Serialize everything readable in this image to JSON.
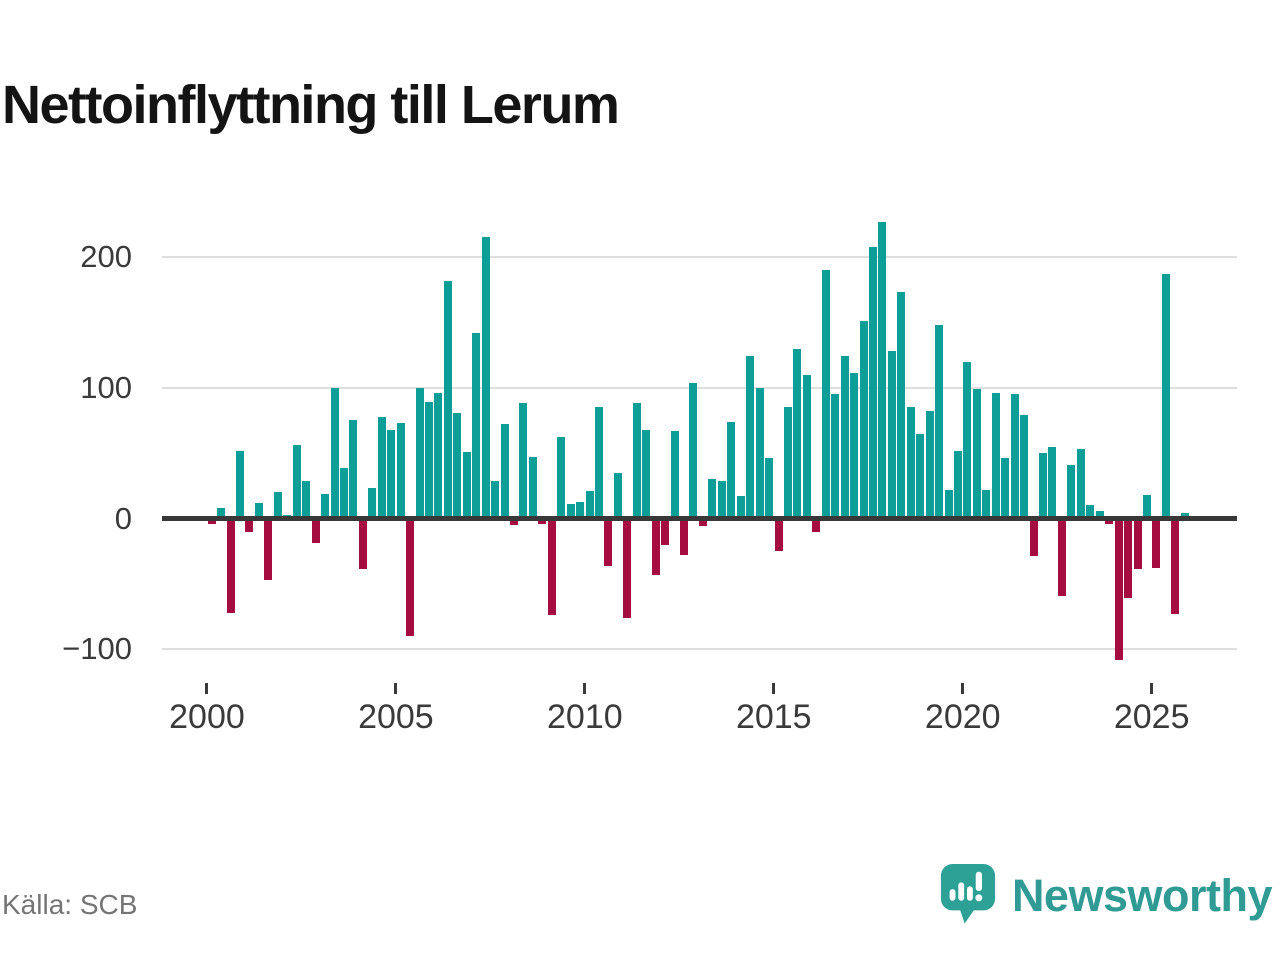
{
  "title": "Nettoinflyttning till Lerum",
  "source": "Källa: SCB",
  "logo": {
    "text": "Newsworthy",
    "icon": "newsworthy-speech-bubble-barchart-icon"
  },
  "colors": {
    "positive": "#0d9f97",
    "negative": "#a50d41",
    "grid": "#dedede",
    "zero_axis": "#383838",
    "tick_label": "#3a3a3a",
    "title": "#141414",
    "source": "#757575",
    "logo": "#2ea197"
  },
  "chart_data": {
    "type": "bar",
    "title": "Nettoinflyttning till Lerum",
    "xlabel": "",
    "ylabel": "",
    "x_unit": "quarter",
    "start_period": "2000Q1",
    "end_period": "2025Q4",
    "ylim": [
      -130,
      245
    ],
    "grid": true,
    "legend": "none",
    "yticks": [
      {
        "value": 200,
        "label": "200"
      },
      {
        "value": 100,
        "label": "100"
      },
      {
        "value": 0,
        "label": "0"
      },
      {
        "value": -100,
        "label": "−100"
      }
    ],
    "xticks": [
      {
        "value": 2000,
        "label": "2000"
      },
      {
        "value": 2005,
        "label": "2005"
      },
      {
        "value": 2010,
        "label": "2010"
      },
      {
        "value": 2015,
        "label": "2015"
      },
      {
        "value": 2020,
        "label": "2020"
      },
      {
        "value": 2025,
        "label": "2025"
      }
    ],
    "values": [
      -4,
      8,
      -72,
      52,
      -10,
      12,
      -47,
      20,
      3,
      56,
      29,
      -19,
      19,
      100,
      39,
      75,
      -39,
      23,
      78,
      68,
      73,
      -90,
      100,
      89,
      96,
      182,
      81,
      51,
      142,
      215,
      29,
      72,
      -5,
      88,
      47,
      -4,
      -74,
      62,
      11,
      13,
      21,
      85,
      -36,
      35,
      -76,
      88,
      68,
      -43,
      -20,
      67,
      -28,
      104,
      -6,
      30,
      29,
      74,
      17,
      124,
      100,
      46,
      -25,
      85,
      130,
      110,
      -10,
      190,
      95,
      124,
      111,
      151,
      208,
      227,
      128,
      173,
      85,
      65,
      82,
      148,
      22,
      52,
      120,
      99,
      22,
      96,
      46,
      95,
      79,
      -29,
      50,
      55,
      -59,
      41,
      53,
      10,
      6,
      -4,
      -108,
      -61,
      -39,
      18,
      -38,
      187,
      -73,
      4
    ]
  }
}
